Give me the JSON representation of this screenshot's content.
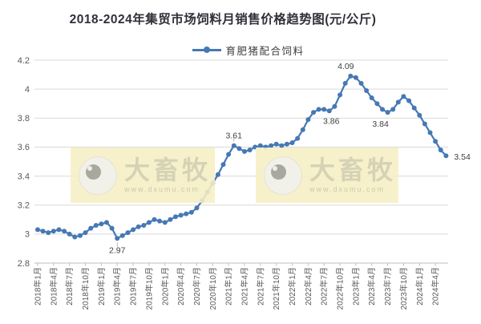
{
  "page": {
    "title": "2018-2024年集贸市场饲料月销售价格趋势图(元/公斤)"
  },
  "legend": {
    "label": "育肥猪配合饲料"
  },
  "watermark": {
    "brand": "大畜牧",
    "url": "www.dxumu.com"
  },
  "chart_data": {
    "type": "line",
    "title": "2018-2024年集贸市场饲料月销售价格趋势图(元/公斤)",
    "unit": "元/公斤",
    "legend_position": "top",
    "grid": "horizontal",
    "x_monthly_from": "2018年1月",
    "x_monthly_to": "2024年6月",
    "x_tick_labels": [
      "2018年1月",
      "2018年4月",
      "2018年7月",
      "2018年10月",
      "2019年1月",
      "2019年4月",
      "2019年7月",
      "2019年10月",
      "2020年1月",
      "2020年4月",
      "2020年7月",
      "2020年10月",
      "2021年1月",
      "2021年4月",
      "2021年7月",
      "2021年10月",
      "2022年1月",
      "2022年4月",
      "2022年7月",
      "2022年10月",
      "2023年1月",
      "2023年4月",
      "2023年7月",
      "2023年10月",
      "2024年1月",
      "2024年4月"
    ],
    "y_ticks": [
      2.8,
      3,
      3.2,
      3.4,
      3.6,
      3.8,
      4,
      4.2
    ],
    "y_tick_labels": [
      "2.8",
      "3",
      "3.2",
      "3.4",
      "3.6",
      "3.8",
      "4",
      "4.2"
    ],
    "ylim": [
      2.8,
      4.2
    ],
    "series": [
      {
        "name": "育肥猪配合饲料",
        "values": [
          3.03,
          3.02,
          3.01,
          3.02,
          3.03,
          3.02,
          3.0,
          2.98,
          2.99,
          3.01,
          3.04,
          3.06,
          3.07,
          3.08,
          3.04,
          2.97,
          2.99,
          3.01,
          3.03,
          3.05,
          3.06,
          3.08,
          3.1,
          3.09,
          3.08,
          3.1,
          3.12,
          3.13,
          3.14,
          3.15,
          3.18,
          3.23,
          3.29,
          3.35,
          3.41,
          3.48,
          3.55,
          3.61,
          3.59,
          3.57,
          3.58,
          3.6,
          3.61,
          3.6,
          3.61,
          3.62,
          3.61,
          3.62,
          3.63,
          3.66,
          3.72,
          3.79,
          3.84,
          3.86,
          3.86,
          3.85,
          3.88,
          3.96,
          4.04,
          4.09,
          4.08,
          4.04,
          3.99,
          3.94,
          3.9,
          3.86,
          3.84,
          3.86,
          3.91,
          3.95,
          3.92,
          3.87,
          3.82,
          3.76,
          3.7,
          3.64,
          3.58,
          3.54
        ]
      }
    ],
    "point_labels": [
      {
        "index": 15,
        "text": "2.97",
        "placement": "below",
        "leader": true
      },
      {
        "index": 37,
        "text": "3.61",
        "placement": "above",
        "leader": true
      },
      {
        "index": 54,
        "text": "3.86",
        "placement": "below",
        "dx": 9
      },
      {
        "index": 59,
        "text": "4.09",
        "placement": "above",
        "dx": -6
      },
      {
        "index": 66,
        "text": "3.84",
        "placement": "below",
        "dx": -9
      },
      {
        "index": 77,
        "text": "3.54",
        "placement": "right"
      }
    ],
    "colors": {
      "line": "#4678b4",
      "grid": "#d9d9d9",
      "axis": "#bfbfbf",
      "tick_text": "#595959",
      "point_label_text": "#404040",
      "title_text": "#30303a",
      "watermark_bg": "#f6efc4",
      "watermark_text": "#d6d2b6"
    }
  }
}
